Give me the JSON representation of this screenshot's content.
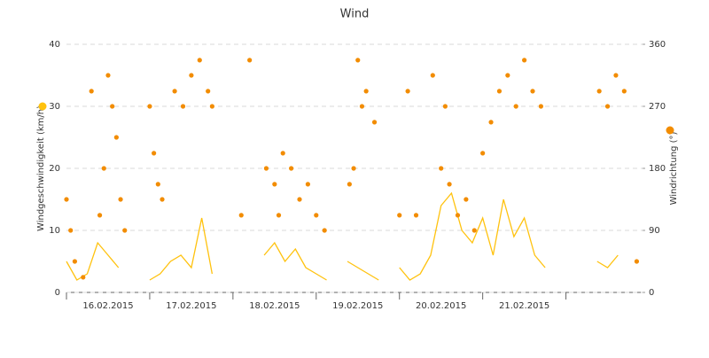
{
  "chart_data": {
    "type": "line_scatter",
    "title": "Wind",
    "ylabel": "Windgeschwindigkeit (km/h)",
    "y2label": "Windrichtung (°)",
    "xlim": [
      16,
      22.92
    ],
    "xticks": [
      {
        "value": 16.5,
        "label": "16.02.2015"
      },
      {
        "value": 17.5,
        "label": "17.02.2015"
      },
      {
        "value": 18.5,
        "label": "18.02.2015"
      },
      {
        "value": 19.5,
        "label": "19.02.2015"
      },
      {
        "value": 20.5,
        "label": "20.02.2015"
      },
      {
        "value": 21.5,
        "label": "21.02.2015"
      }
    ],
    "ylim": [
      0,
      40
    ],
    "yticks": [
      0,
      10,
      20,
      30,
      40
    ],
    "y2lim": [
      0,
      360
    ],
    "y2ticks": [
      0,
      90,
      180,
      270,
      360
    ],
    "grid": true,
    "series": [
      {
        "type": "line",
        "color": "#ffc20e",
        "x": [
          16,
          16.125,
          16.25,
          16.375,
          16.5,
          16.625,
          16.75,
          16.875,
          17,
          17.125,
          17.25,
          17.375,
          17.5,
          17.625,
          17.75,
          17.875,
          18,
          18.125,
          18.25,
          18.375,
          18.5,
          18.625,
          18.75,
          18.875,
          19,
          19.125,
          19.25,
          19.375,
          19.5,
          19.625,
          19.75,
          19.875,
          20,
          20.125,
          20.25,
          20.375,
          20.5,
          20.625,
          20.75,
          20.875,
          21,
          21.125,
          21.25,
          21.375,
          21.5,
          21.625,
          21.75,
          21.875,
          22,
          22.125,
          22.25,
          22.375,
          22.5,
          22.625,
          22.75,
          22.875
        ],
        "values": [
          5,
          2,
          3,
          8,
          6,
          4,
          null,
          null,
          2,
          3,
          5,
          6,
          4,
          12,
          3,
          null,
          null,
          null,
          null,
          6,
          8,
          5,
          7,
          4,
          3,
          2,
          null,
          5,
          4,
          3,
          2,
          null,
          4,
          2,
          3,
          6,
          14,
          16,
          10,
          8,
          12,
          6,
          15,
          9,
          12,
          6,
          4,
          null,
          null,
          null,
          null,
          5,
          4,
          6,
          null,
          5
        ]
      },
      {
        "type": "scatter",
        "axis": "y2",
        "color": "#f28c00",
        "x": [
          16,
          16.05,
          16.1,
          16.2,
          16.3,
          16.4,
          16.45,
          16.5,
          16.55,
          16.6,
          16.65,
          16.7,
          17,
          17.05,
          17.1,
          17.15,
          17.3,
          17.4,
          17.5,
          17.6,
          17.7,
          17.75,
          18.1,
          18.2,
          18.4,
          18.5,
          18.55,
          18.6,
          18.7,
          18.8,
          18.9,
          19,
          19.1,
          19.4,
          19.45,
          19.5,
          19.55,
          19.6,
          19.7,
          20,
          20.1,
          20.2,
          20.4,
          20.5,
          20.55,
          20.6,
          20.7,
          20.8,
          20.9,
          21,
          21.1,
          21.2,
          21.3,
          21.4,
          21.5,
          21.6,
          21.7,
          22.4,
          22.5,
          22.6,
          22.7,
          22.85
        ],
        "values": [
          135,
          90,
          45,
          22,
          292,
          112,
          180,
          315,
          270,
          225,
          135,
          90,
          270,
          202,
          157,
          135,
          292,
          270,
          315,
          337,
          292,
          270,
          112,
          337,
          180,
          157,
          112,
          202,
          180,
          135,
          157,
          112,
          90,
          157,
          180,
          337,
          270,
          292,
          247,
          112,
          292,
          112,
          315,
          180,
          270,
          157,
          112,
          135,
          90,
          202,
          247,
          292,
          315,
          270,
          337,
          292,
          270,
          292,
          270,
          315,
          292,
          45
        ]
      }
    ]
  }
}
